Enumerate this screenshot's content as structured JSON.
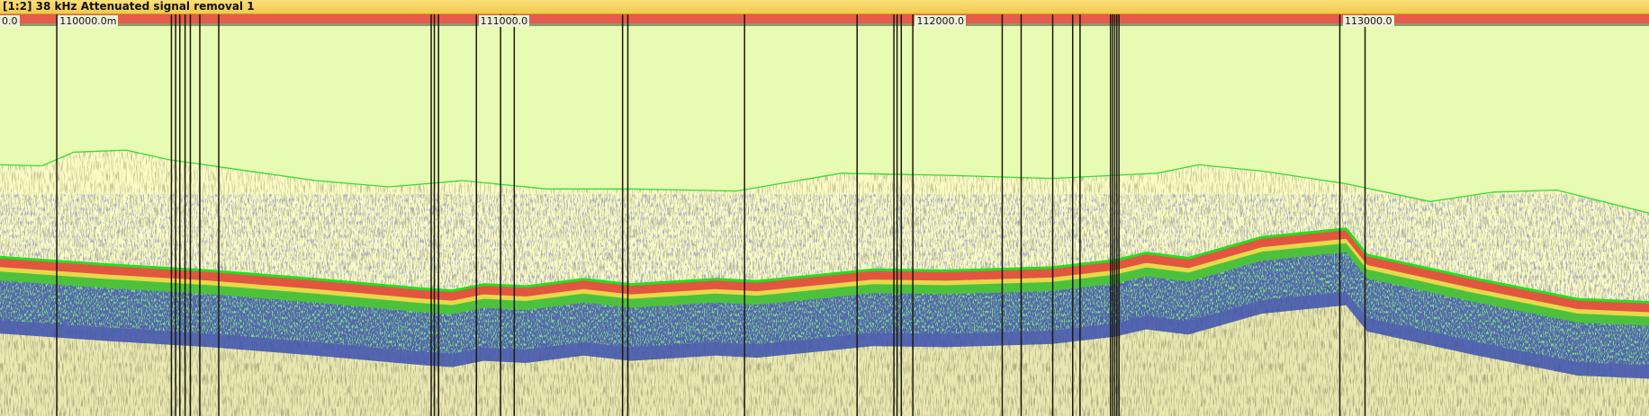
{
  "header": {
    "title": "[1:2] 38 kHz Attenuated signal removal 1"
  },
  "ruler": {
    "labels": [
      "0.0",
      "110000.0m",
      "111000.0",
      "112000.0",
      "113000.0"
    ]
  }
}
